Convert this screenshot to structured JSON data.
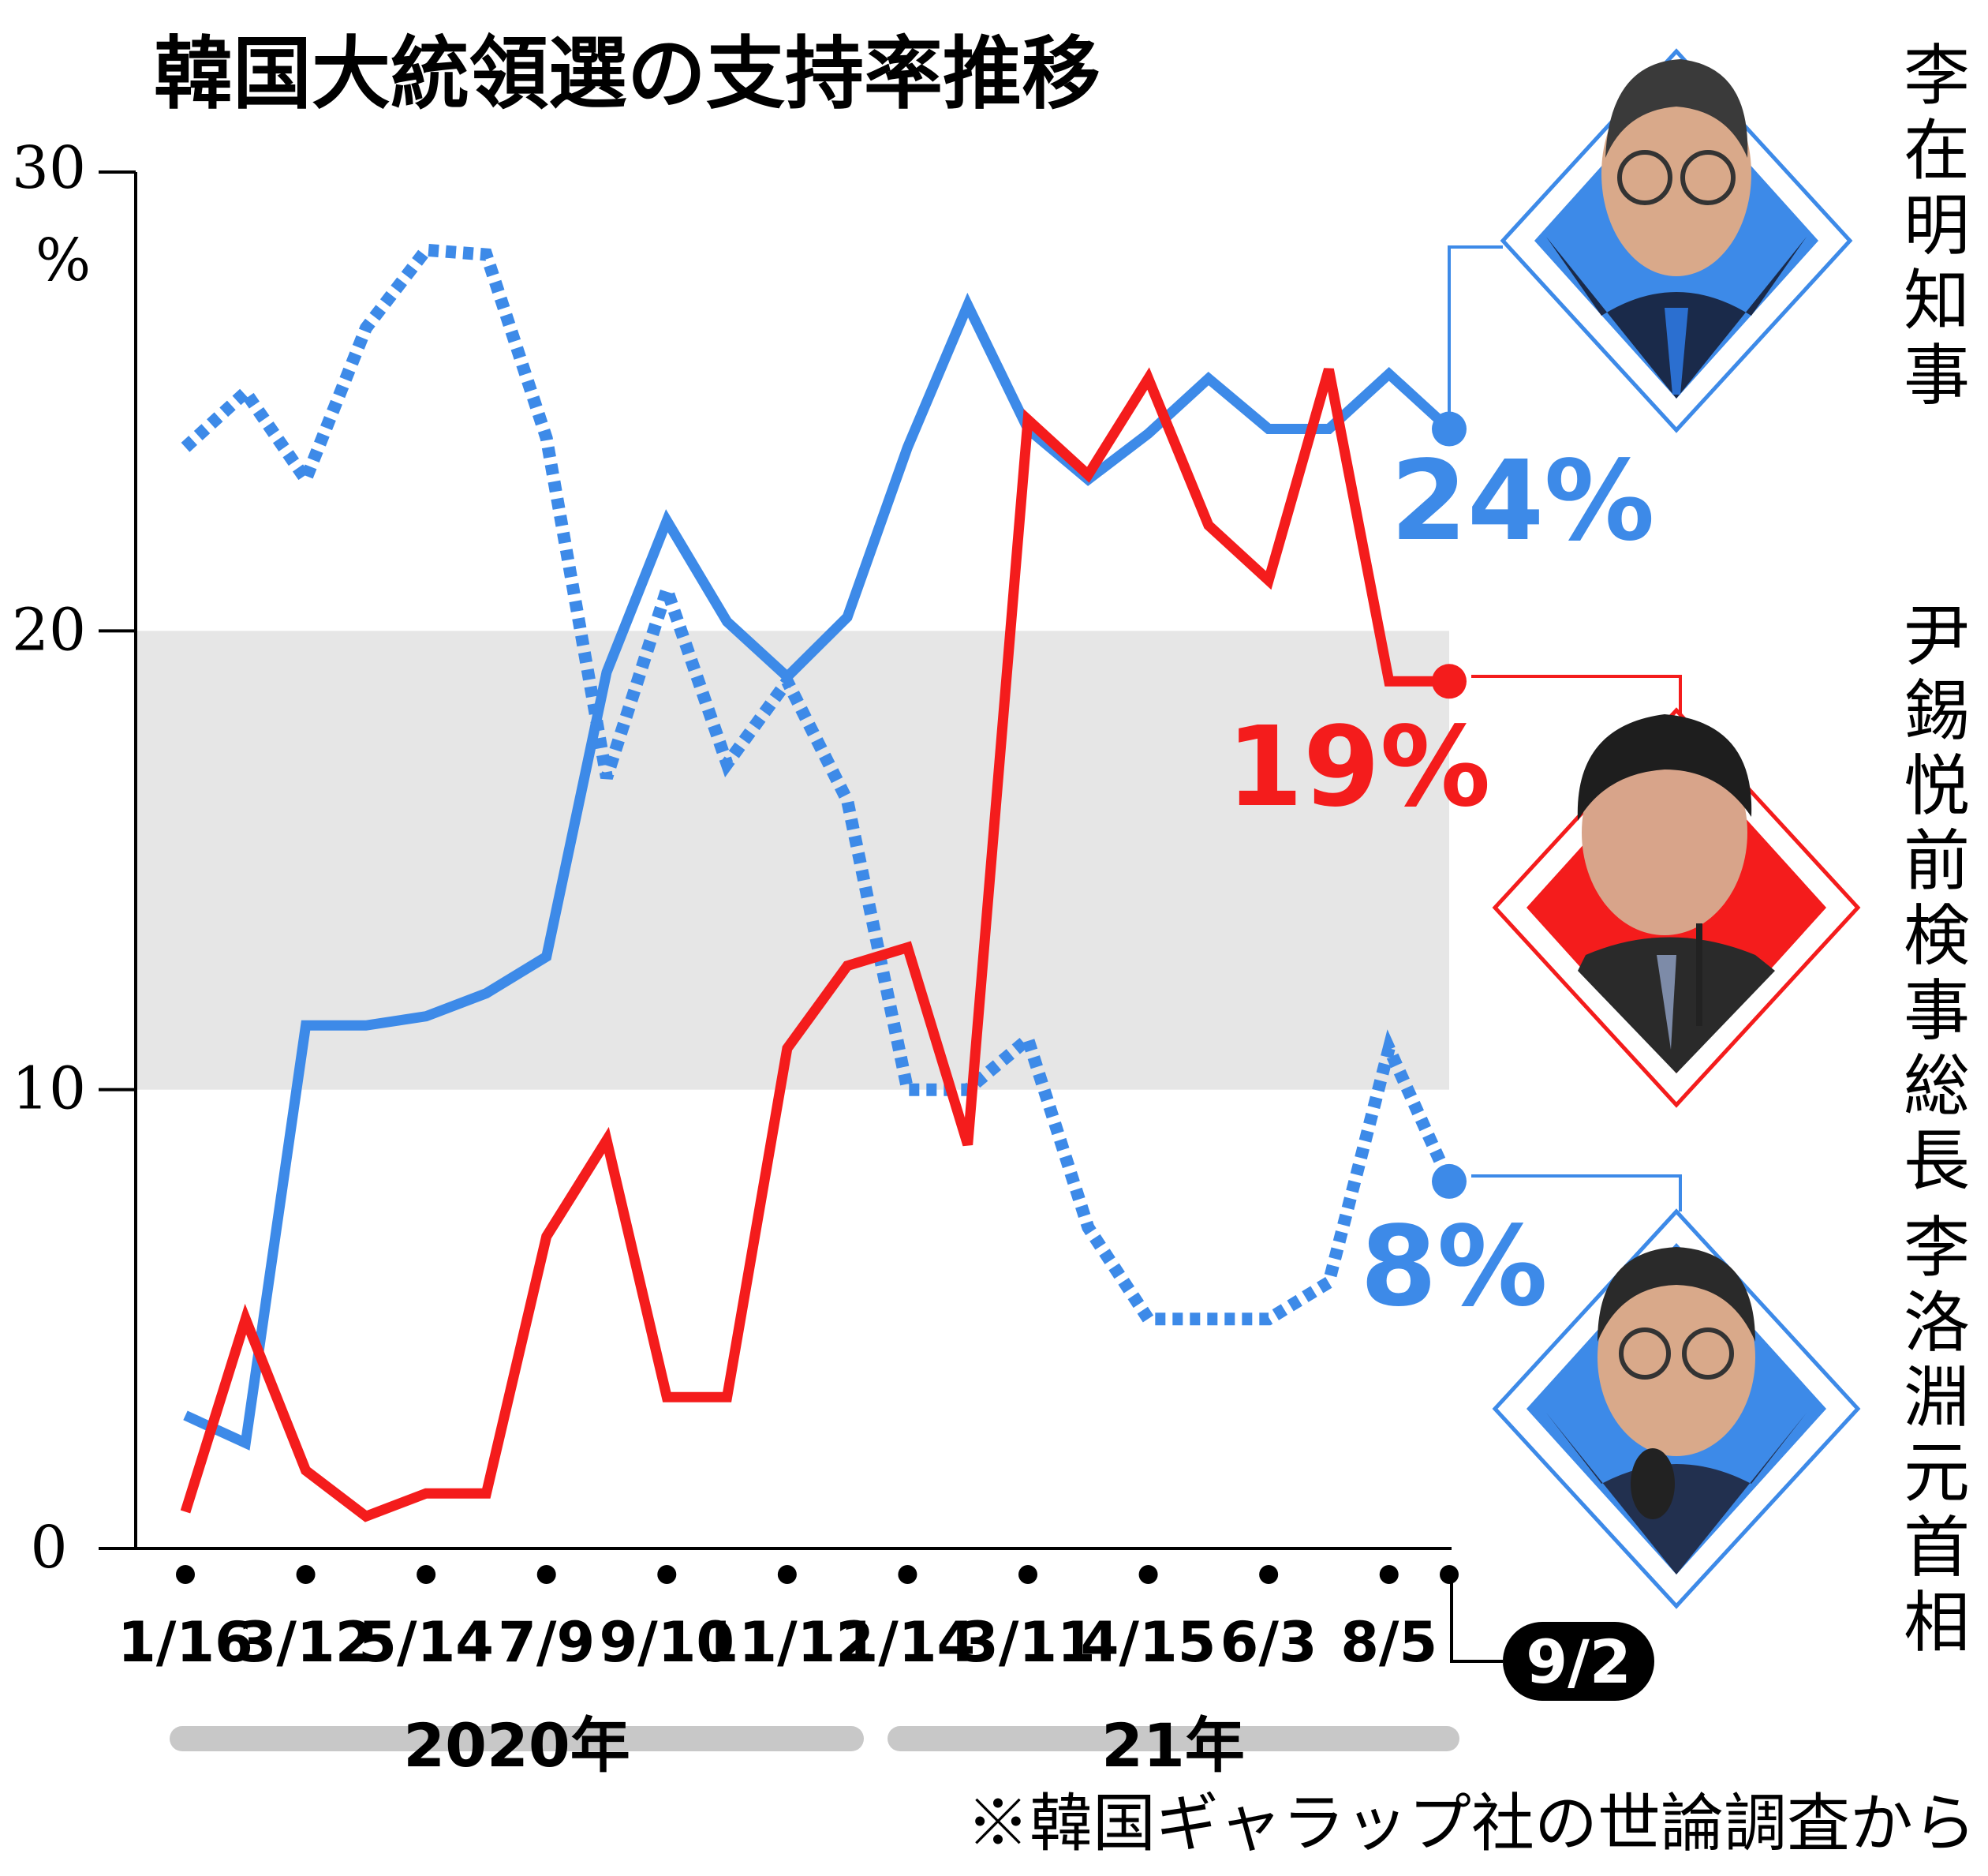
{
  "chart_data": {
    "type": "line",
    "title": "韓国大統領選の支持率推移",
    "yunit": "%",
    "ylim": [
      0,
      30
    ],
    "yticks": [
      "30",
      "20",
      "10",
      "0"
    ],
    "highlight_band": [
      10,
      20
    ],
    "x_labels": [
      "1/16",
      "3/12",
      "5/14",
      "7/9",
      "9/10",
      "11/12",
      "1/14",
      "3/11",
      "4/15",
      "6/3",
      "8/5"
    ],
    "latest_label": "9/2",
    "year_labels": [
      "2020年",
      "21年"
    ],
    "series": [
      {
        "name": "李在明知事",
        "style": "solid",
        "color": "#3d8ae8",
        "end_label": "24%",
        "values": [
          2.9,
          2.3,
          11.4,
          11.4,
          11.6,
          12.1,
          12.9,
          19.1,
          22.4,
          20.2,
          19.0,
          20.3,
          24.0,
          27.1,
          24.4,
          23.3,
          24.3,
          25.5,
          24.4,
          24.4,
          25.6,
          24.4
        ]
      },
      {
        "name": "尹錫悦前検事総長",
        "style": "solid",
        "color": "#f41c1c",
        "end_label": "19%",
        "values": [
          0.8,
          5.0,
          1.7,
          0.7,
          1.2,
          1.2,
          6.8,
          8.9,
          3.3,
          3.3,
          10.9,
          12.7,
          13.1,
          8.8,
          24.6,
          23.4,
          25.5,
          22.3,
          21.1,
          25.7,
          18.9,
          18.9
        ]
      },
      {
        "name": "李洛淵元首相",
        "style": "dotted",
        "color": "#3d8ae8",
        "end_label": "8%",
        "values": [
          24.0,
          25.2,
          23.3,
          26.6,
          28.3,
          28.2,
          24.2,
          16.8,
          20.9,
          17.1,
          18.9,
          16.3,
          10.0,
          10.0,
          11.1,
          7.0,
          5.0,
          5.0,
          5.0,
          5.8,
          10.9,
          8.0
        ]
      }
    ]
  },
  "footnote": "※韓国ギャラップ社の世論調査から"
}
